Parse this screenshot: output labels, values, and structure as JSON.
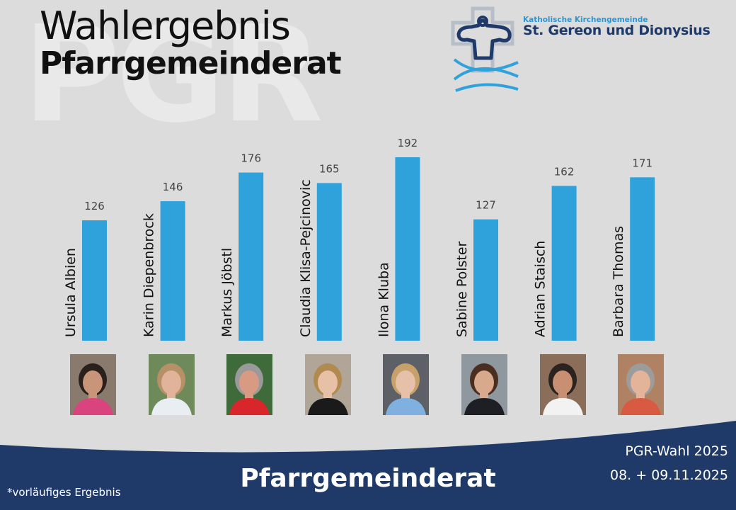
{
  "header": {
    "watermark": "PGR",
    "title_line1": "Wahlergebnis",
    "title_line2": "Pfarrgemeinderat"
  },
  "parish": {
    "line1": "Katholische Kirchengemeinde",
    "line2": "St. Gereon und Dionysius"
  },
  "chart_data": {
    "type": "bar",
    "categories": [
      "Ursula Albien",
      "Karin Diepenbrock",
      "Markus Jöbstl",
      "Claudia Klisa-Pejcinovic",
      "Ilona Kluba",
      "Sabine Polster",
      "Adrian Staisch",
      "Barbara Thomas"
    ],
    "values": [
      126,
      146,
      176,
      165,
      192,
      127,
      162,
      171
    ],
    "title": "Wahlergebnis Pfarrgemeinderat",
    "xlabel": "",
    "ylabel": "",
    "ylim": [
      0,
      200
    ],
    "grid": false,
    "legend": "none",
    "bar_color": "#2fa2dc",
    "value_label_color": "#444444"
  },
  "portraits": [
    {
      "name": "Ursula Albien",
      "bg": "#8a7a6e",
      "skin": "#c9957a",
      "hair": "#2a211c",
      "top": "#d9437e"
    },
    {
      "name": "Karin Diepenbrock",
      "bg": "#6f8a5a",
      "skin": "#e0b39a",
      "hair": "#b79166",
      "top": "#e9eef2"
    },
    {
      "name": "Markus Jöbstl",
      "bg": "#3f6b3a",
      "skin": "#d99a84",
      "hair": "#9a9a9a",
      "top": "#d8262a"
    },
    {
      "name": "Claudia Klisa-Pejcinovic",
      "bg": "#b0a596",
      "skin": "#e7c0a5",
      "hair": "#b08a4e",
      "top": "#1a1a1a"
    },
    {
      "name": "Ilona Kluba",
      "bg": "#5d6066",
      "skin": "#e6c0a8",
      "hair": "#c8a06a",
      "top": "#7fb0e0"
    },
    {
      "name": "Sabine Polster",
      "bg": "#8f989f",
      "skin": "#d9a98e",
      "hair": "#4a2f21",
      "top": "#1d1f24"
    },
    {
      "name": "Adrian Staisch",
      "bg": "#8b6e5a",
      "skin": "#c98f72",
      "hair": "#2a2320",
      "top": "#f2f2f2"
    },
    {
      "name": "Barbara Thomas",
      "bg": "#b08264",
      "skin": "#e3b39a",
      "hair": "#9c9c9c",
      "top": "#d85a42"
    }
  ],
  "footer": {
    "title": "Pfarrgemeinderat",
    "note": "*vorläufiges Ergebnis",
    "event": "PGR-Wahl 2025",
    "dates": "08. + 09.11.2025",
    "color": "#1f3a68"
  }
}
